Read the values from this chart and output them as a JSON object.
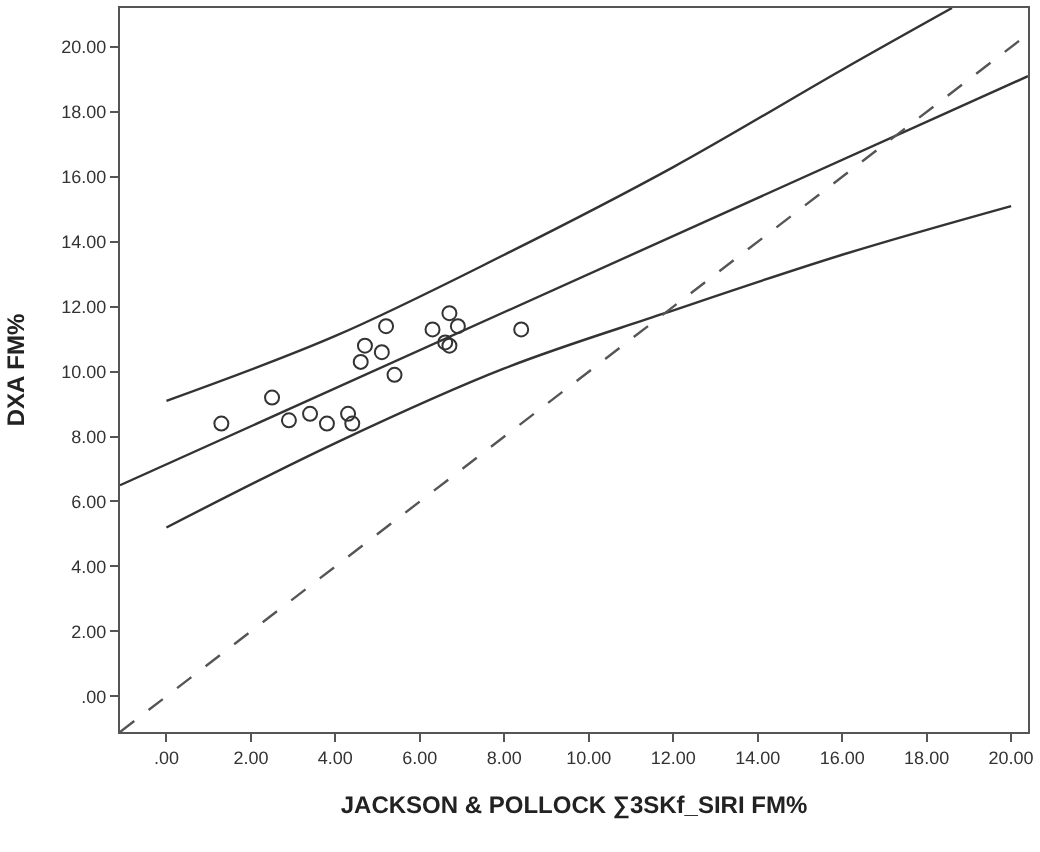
{
  "chart_data": {
    "type": "scatter",
    "xlabel": "JACKSON & POLLOCK ∑3SKf_SIRI FM%",
    "ylabel": "DXA FM%",
    "xlim": [
      -1.1,
      20.4
    ],
    "ylim": [
      -1.1,
      21.2
    ],
    "xticks": [
      {
        "value": 0,
        "label": ".00"
      },
      {
        "value": 2,
        "label": "2.00"
      },
      {
        "value": 4,
        "label": "4.00"
      },
      {
        "value": 6,
        "label": "6.00"
      },
      {
        "value": 8,
        "label": "8.00"
      },
      {
        "value": 10,
        "label": "10.00"
      },
      {
        "value": 12,
        "label": "12.00"
      },
      {
        "value": 14,
        "label": "14.00"
      },
      {
        "value": 16,
        "label": "16.00"
      },
      {
        "value": 18,
        "label": "18.00"
      },
      {
        "value": 20,
        "label": "20.00"
      }
    ],
    "yticks": [
      {
        "value": 0,
        "label": ".00"
      },
      {
        "value": 2,
        "label": "2.00"
      },
      {
        "value": 4,
        "label": "4.00"
      },
      {
        "value": 6,
        "label": "6.00"
      },
      {
        "value": 8,
        "label": "8.00"
      },
      {
        "value": 10,
        "label": "10.00"
      },
      {
        "value": 12,
        "label": "12.00"
      },
      {
        "value": 14,
        "label": "14.00"
      },
      {
        "value": 16,
        "label": "16.00"
      },
      {
        "value": 18,
        "label": "18.00"
      },
      {
        "value": 20,
        "label": "20.00"
      }
    ],
    "series": [
      {
        "marker": "circle",
        "color": "#333333",
        "x": [
          1.3,
          2.5,
          2.9,
          3.4,
          3.8,
          4.3,
          4.4,
          4.6,
          4.7,
          5.1,
          5.2,
          5.4,
          6.3,
          6.7,
          6.6,
          6.7,
          6.9,
          8.4
        ],
        "values": [
          8.4,
          9.2,
          8.5,
          8.7,
          8.4,
          8.7,
          8.4,
          10.3,
          10.8,
          10.6,
          11.4,
          9.9,
          11.3,
          11.8,
          10.9,
          10.8,
          11.4,
          11.3
        ]
      },
      {
        "type": "line",
        "line_style": "solid",
        "color": "#333333",
        "x": [
          -1.1,
          20.4
        ],
        "values": [
          6.5,
          19.1
        ]
      },
      {
        "type": "line",
        "line_style": "solid",
        "color": "#333333",
        "x": [
          0,
          4,
          8,
          12,
          16,
          18.6
        ],
        "values": [
          9.1,
          11.1,
          13.6,
          16.3,
          19.3,
          21.2
        ]
      },
      {
        "type": "line",
        "line_style": "solid",
        "color": "#333333",
        "x": [
          0,
          4,
          8,
          11.8,
          16,
          20
        ],
        "values": [
          5.2,
          7.8,
          10.1,
          11.8,
          13.6,
          15.1
        ]
      },
      {
        "type": "line",
        "line_style": "dashed",
        "color": "#555555",
        "x": [
          -1.1,
          20.4
        ],
        "values": [
          -1.1,
          20.4
        ]
      }
    ]
  }
}
